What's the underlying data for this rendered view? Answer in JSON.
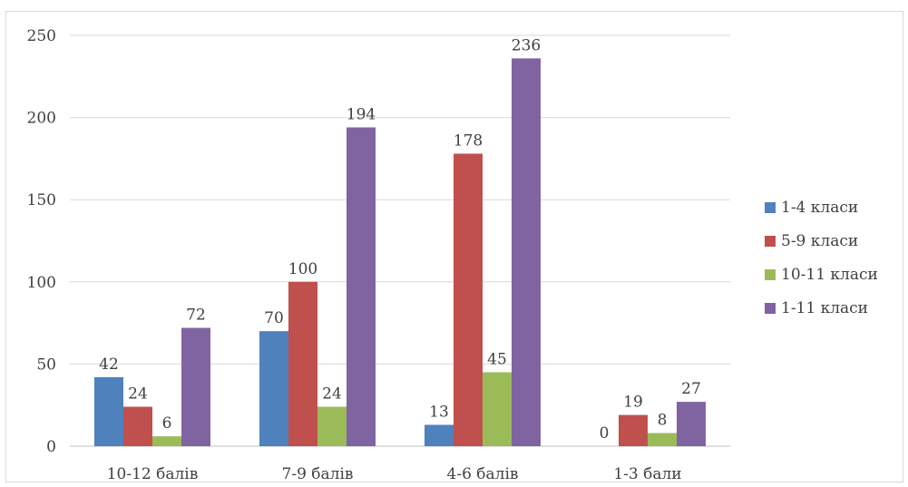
{
  "chart_data": {
    "type": "bar",
    "categories": [
      "10-12 балів",
      "7-9 балів",
      "4-6 балів",
      "1-3 бали"
    ],
    "series": [
      {
        "name": "1-4 класи",
        "color": "#4f81bd",
        "values": [
          42,
          70,
          13,
          0
        ]
      },
      {
        "name": "5-9 класи",
        "color": "#c0504d",
        "values": [
          24,
          100,
          178,
          19
        ]
      },
      {
        "name": "10-11 класи",
        "color": "#9bbb59",
        "values": [
          6,
          24,
          45,
          8
        ]
      },
      {
        "name": "1-11 класи",
        "color": "#8064a2",
        "values": [
          72,
          194,
          236,
          27
        ]
      }
    ],
    "ylim": [
      0,
      250
    ],
    "yticks": [
      0,
      50,
      100,
      150,
      200,
      250
    ],
    "grid": true,
    "legend_position": "right",
    "data_labels": true
  }
}
